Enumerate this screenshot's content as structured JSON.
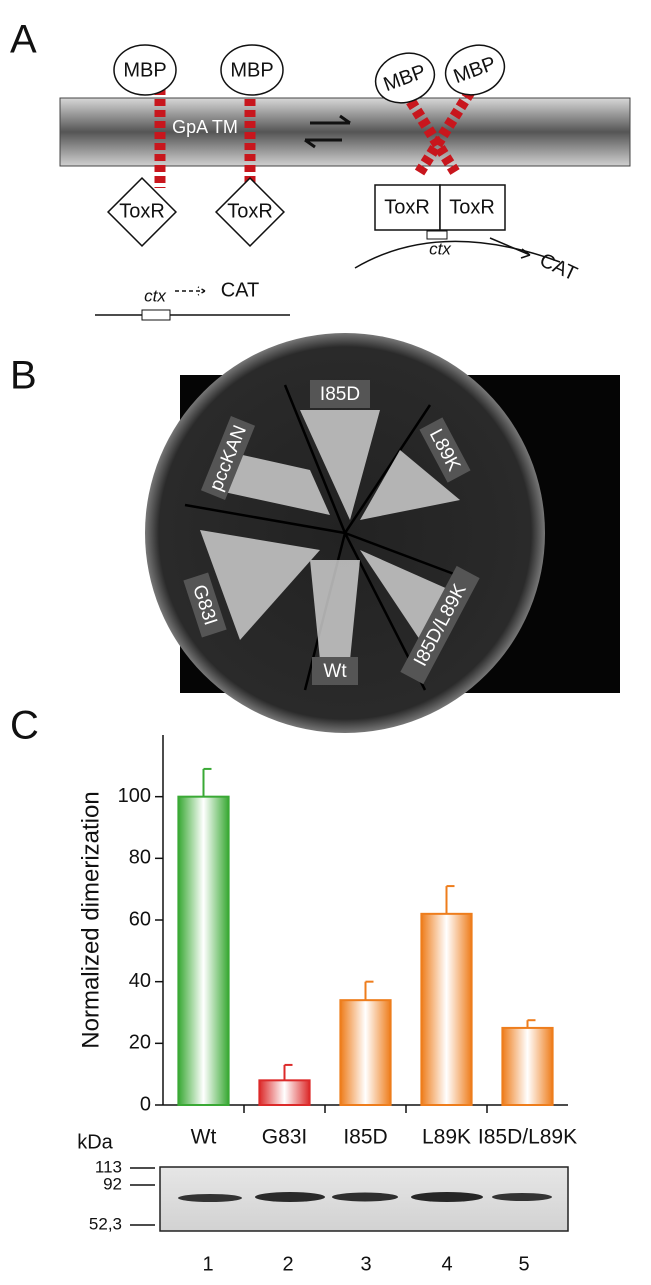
{
  "panel_a": {
    "label": "A",
    "mbp": [
      "MBP",
      "MBP",
      "MBP",
      "MBP"
    ],
    "membrane_label": "GpA TM",
    "toxr": [
      "ToxR",
      "ToxR",
      "ToxR",
      "ToxR"
    ],
    "promoter": [
      "ctx",
      "ctx"
    ],
    "reporter": [
      "CAT",
      "CAT"
    ]
  },
  "panel_b": {
    "label": "B",
    "sectors": [
      "I85D",
      "L89K",
      "I85D/L89K",
      "Wt",
      "G83I",
      "pccKAN"
    ]
  },
  "panel_c": {
    "label": "C"
  },
  "chart_data": {
    "type": "bar",
    "ylabel": "Normalized dimerization",
    "categories": [
      "Wt",
      "G83I",
      "I85D",
      "L89K",
      "I85D/L89K"
    ],
    "values": [
      100,
      8,
      34,
      62,
      25
    ],
    "errors": [
      9,
      5,
      6,
      9,
      2.5
    ],
    "colors": [
      "#3aa935",
      "#dc2a2a",
      "#ee7d1c",
      "#ee7d1c",
      "#ee7d1c"
    ],
    "ylim": [
      0,
      120
    ],
    "yticks": [
      0,
      20,
      40,
      60,
      80,
      100
    ]
  },
  "blot": {
    "unit": "kDa",
    "markers": [
      "113",
      "92",
      "52,3"
    ],
    "lanes": [
      "1",
      "2",
      "3",
      "4",
      "5"
    ]
  }
}
